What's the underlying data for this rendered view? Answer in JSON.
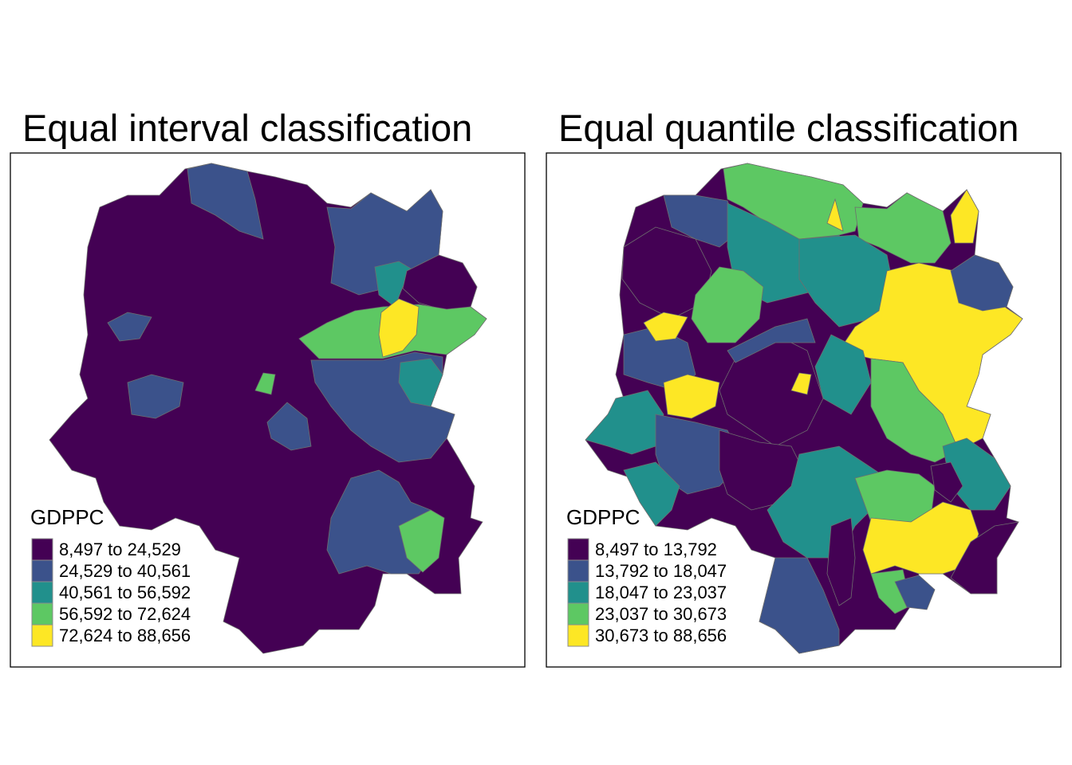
{
  "palette": [
    "#440154",
    "#3b528b",
    "#21908c",
    "#5dc863",
    "#fde725"
  ],
  "chart_data": [
    {
      "type": "choropleth-map",
      "title": "Equal interval classification",
      "variable": "GDPPC",
      "legend_title": "GDPPC",
      "legend_position": "bottom-left",
      "classes": [
        {
          "label": "8,497 to 24,529",
          "min": 8497,
          "max": 24529,
          "color": "#440154"
        },
        {
          "label": "24,529 to 40,561",
          "min": 24529,
          "max": 40561,
          "color": "#3b528b"
        },
        {
          "label": "40,561 to 56,592",
          "min": 40561,
          "max": 56592,
          "color": "#21908c"
        },
        {
          "label": "56,592 to 72,624",
          "min": 56592,
          "max": 72624,
          "color": "#5dc863"
        },
        {
          "label": "72,624 to 88,656",
          "min": 72624,
          "max": 88656,
          "color": "#fde725"
        }
      ]
    },
    {
      "type": "choropleth-map",
      "title": "Equal quantile classification",
      "variable": "GDPPC",
      "legend_title": "GDPPC",
      "legend_position": "bottom-left",
      "classes": [
        {
          "label": "8,497 to 13,792",
          "min": 8497,
          "max": 13792,
          "color": "#440154"
        },
        {
          "label": "13,792 to 18,047",
          "min": 13792,
          "max": 18047,
          "color": "#3b528b"
        },
        {
          "label": "18,047 to 23,037",
          "min": 18047,
          "max": 23037,
          "color": "#21908c"
        },
        {
          "label": "23,037 to 30,673",
          "min": 23037,
          "max": 30673,
          "color": "#5dc863"
        },
        {
          "label": "30,673 to 88,656",
          "min": 30673,
          "max": 88656,
          "color": "#fde725"
        }
      ]
    }
  ]
}
